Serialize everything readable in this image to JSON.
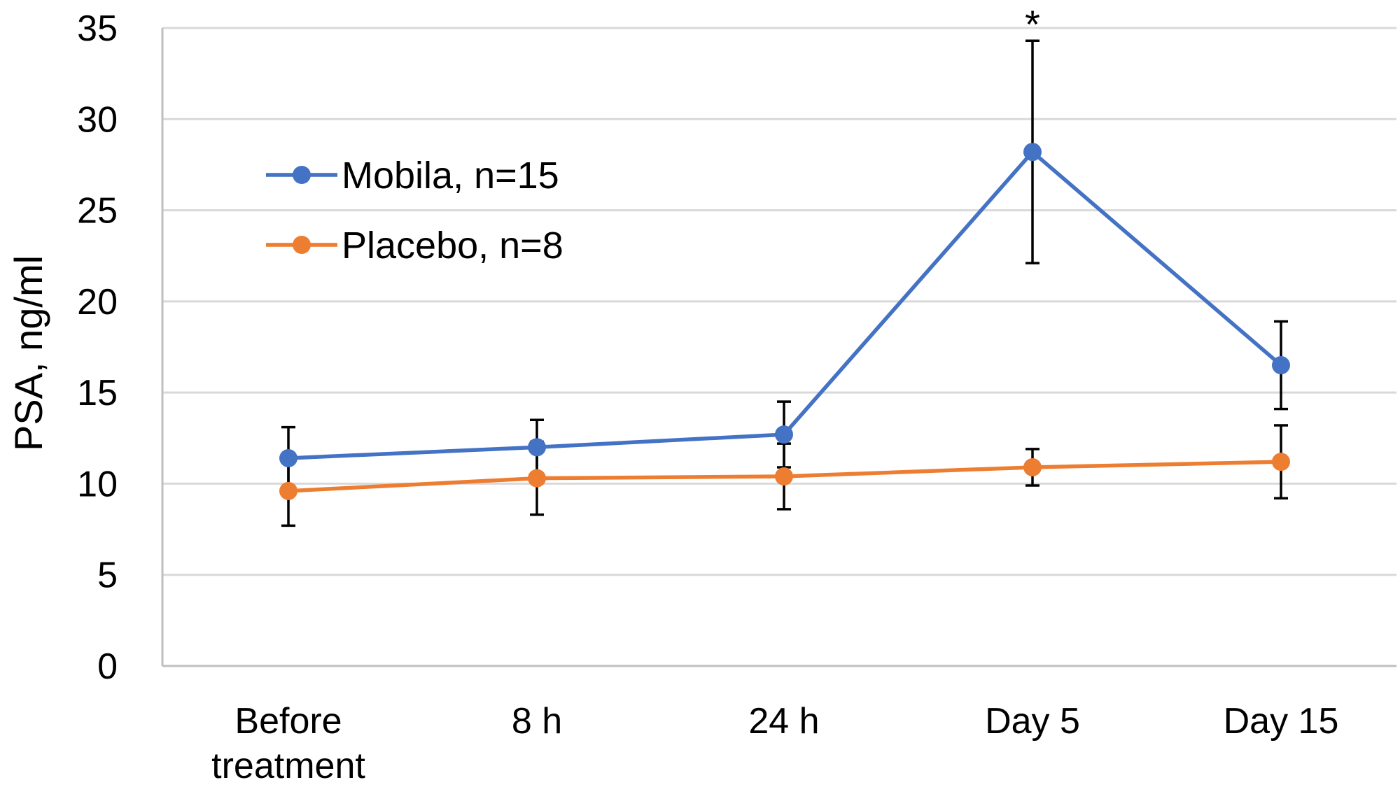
{
  "chart_data": {
    "type": "line",
    "title": "",
    "xlabel": "",
    "ylabel": "PSA, ng/ml",
    "ylim": [
      0,
      35
    ],
    "yticks": [
      0,
      5,
      10,
      15,
      20,
      25,
      30,
      35
    ],
    "grid": "horizontal",
    "legend_position": "top-left",
    "categories": [
      [
        "Before",
        "treatment"
      ],
      [
        "8 h"
      ],
      [
        "24 h"
      ],
      [
        "Day 5"
      ],
      [
        "Day 15"
      ]
    ],
    "x": [
      0,
      1,
      2,
      2.83,
      3.83
    ],
    "series": [
      {
        "name": "Mobila, n=15",
        "color": "#4472C4",
        "values": [
          11.4,
          12.0,
          12.7,
          28.2,
          16.5
        ],
        "error": [
          1.7,
          1.5,
          1.8,
          6.1,
          2.4
        ]
      },
      {
        "name": "Placebo, n=8",
        "color": "#ED7D31",
        "values": [
          9.6,
          10.3,
          10.4,
          10.9,
          11.2
        ],
        "error": [
          1.9,
          2.0,
          1.8,
          1.0,
          2.0
        ]
      }
    ],
    "annotations": [
      {
        "text": "*",
        "category_index": 3,
        "series_index": 0
      }
    ]
  }
}
